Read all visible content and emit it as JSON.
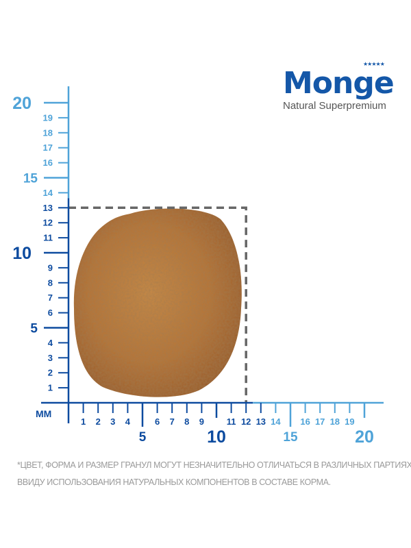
{
  "brand": {
    "logo_text": "Monge",
    "tagline": "Natural Superpremium",
    "stars": "★★★★★",
    "color": "#1457a8"
  },
  "ruler": {
    "unit_label": "MM",
    "dark_color": "#0d4b9f",
    "light_color": "#4fa3d8",
    "dark_until_mm": 13,
    "vertical_minor_labels": [
      "1",
      "2",
      "3",
      "4",
      "6",
      "7",
      "8",
      "9",
      "11",
      "12",
      "13",
      "14",
      "16",
      "17",
      "18",
      "19"
    ],
    "vertical_major_labels": [
      "5",
      "10",
      "15",
      "20"
    ],
    "horizontal_minor_labels": [
      "1",
      "2",
      "3",
      "4",
      "6",
      "7",
      "8",
      "9",
      "11",
      "12",
      "13",
      "14",
      "16",
      "17",
      "18",
      "19"
    ],
    "horizontal_major_labels": [
      "5",
      "10",
      "15",
      "20"
    ],
    "kibble_bounding_box_mm": [
      12,
      13
    ]
  },
  "disclaimer": {
    "line1": "*ЦВЕТ, ФОРМА И РАЗМЕР ГРАНУЛ МОГУТ НЕЗНАЧИТЕЛЬНО ОТЛИЧАТЬСЯ В РАЗЛИЧНЫХ ПАРТИЯХ,",
    "line2": "ВВИДУ ИСПОЛЬЗОВАНИЯ НАТУРАЛЬНЫХ КОМПОНЕНТОВ В СОСТАВЕ КОРМА."
  }
}
